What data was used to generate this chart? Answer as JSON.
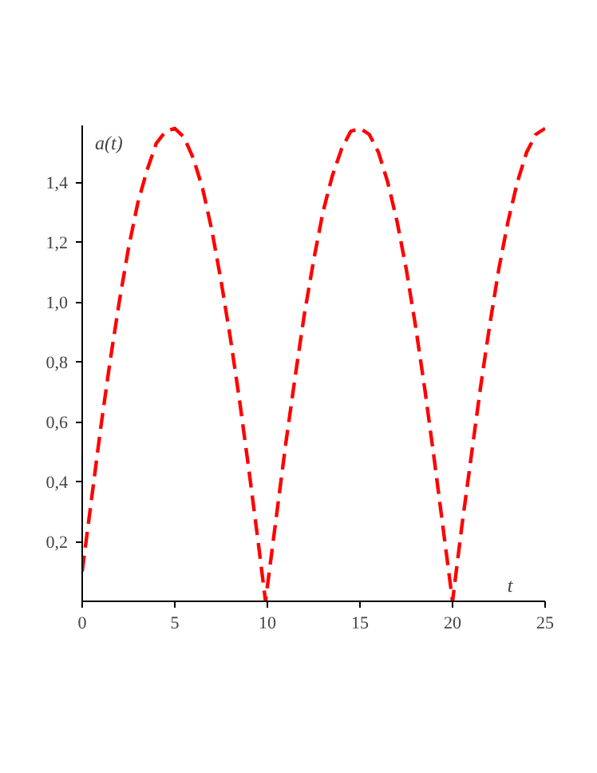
{
  "chart_data": {
    "type": "line",
    "xlabel": "t",
    "ylabel": "a(t)",
    "x": [
      0,
      0.5,
      1,
      1.5,
      2,
      2.5,
      3,
      3.5,
      4,
      4.5,
      5,
      5.5,
      6,
      6.5,
      7,
      7.5,
      8,
      8.5,
      9,
      9.5,
      9.9,
      10,
      10.5,
      11,
      11.5,
      12,
      12.5,
      13,
      13.5,
      14,
      14.5,
      15,
      15.5,
      16,
      16.5,
      17,
      17.5,
      18,
      18.5,
      19,
      19.5,
      20,
      20.5,
      21,
      21.5,
      22,
      22.5,
      23,
      23.5,
      24,
      24.5,
      25
    ],
    "series": [
      {
        "color": "#ff0000",
        "values": [
          0.1,
          0.34,
          0.58,
          0.8,
          1.0,
          1.18,
          1.33,
          1.44,
          1.53,
          1.57,
          1.58,
          1.55,
          1.48,
          1.38,
          1.24,
          1.07,
          0.88,
          0.67,
          0.44,
          0.2,
          0,
          0.05,
          0.29,
          0.53,
          0.75,
          0.96,
          1.14,
          1.3,
          1.42,
          1.51,
          1.57,
          1.58,
          1.56,
          1.5,
          1.4,
          1.27,
          1.11,
          0.92,
          0.71,
          0.48,
          0.24,
          0,
          0.25,
          0.48,
          0.71,
          0.92,
          1.11,
          1.27,
          1.4,
          1.5,
          1.56,
          1.58
        ]
      }
    ],
    "xlim": [
      0,
      25
    ],
    "ylim": [
      0,
      1.59
    ],
    "xticks": [
      0,
      5,
      10,
      15,
      20,
      25
    ],
    "yticks": [
      {
        "value": 0.2,
        "label": "0,2"
      },
      {
        "value": 0.4,
        "label": "0,4"
      },
      {
        "value": 0.6,
        "label": "0,6"
      },
      {
        "value": 0.8,
        "label": "0,8"
      },
      {
        "value": 1.0,
        "label": "1,0"
      },
      {
        "value": 1.2,
        "label": "1,2"
      },
      {
        "value": 1.4,
        "label": "1,4"
      }
    ],
    "line_style": "dashed"
  }
}
